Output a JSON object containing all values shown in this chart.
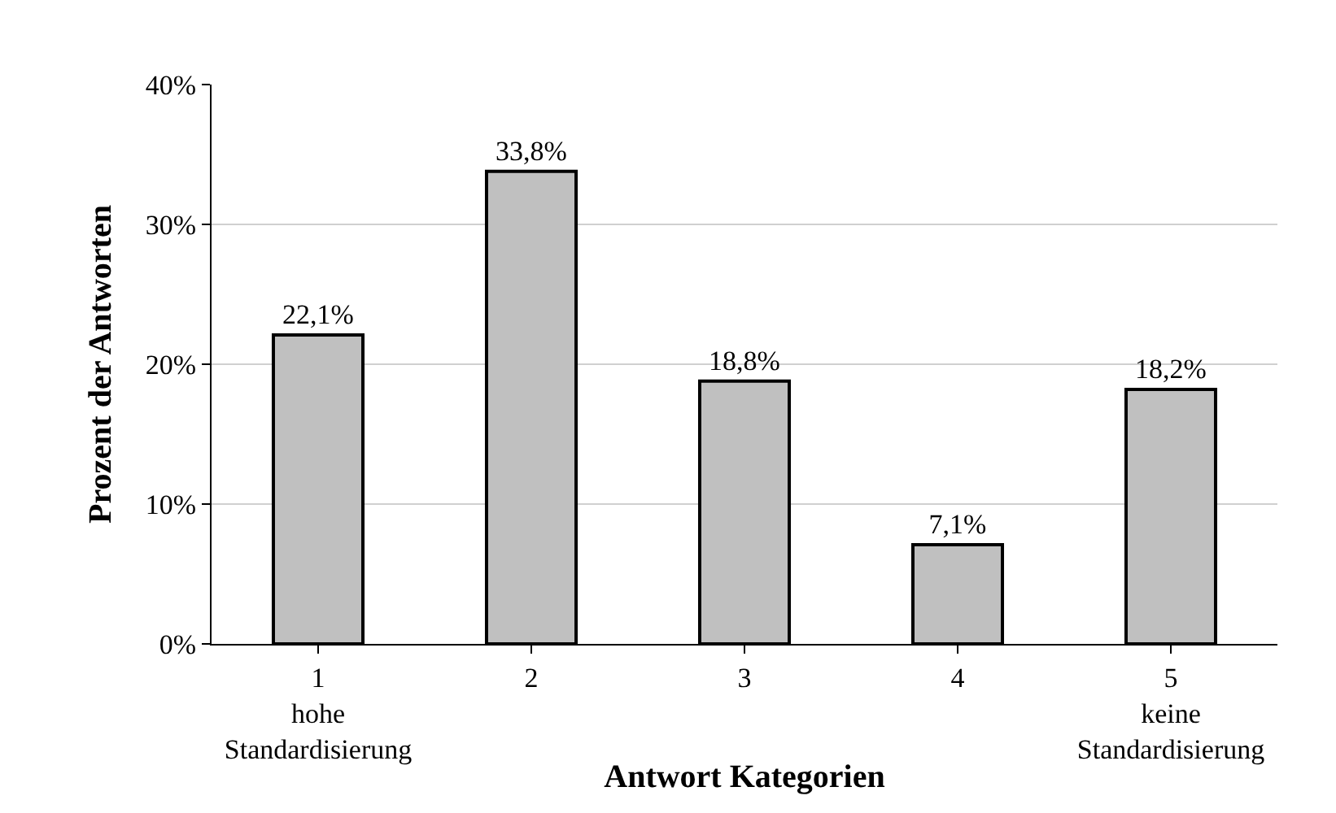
{
  "chart_data": {
    "type": "bar",
    "xlabel": "Antwort Kategorien",
    "ylabel": "Prozent der Antworten",
    "categories": [
      "1\nhohe\nStandardisierung",
      "2",
      "3",
      "4",
      "5\nkeine\nStandardisierung"
    ],
    "values": [
      22.1,
      33.8,
      18.8,
      7.1,
      18.2
    ],
    "value_labels": [
      "22,1%",
      "33,8%",
      "18,8%",
      "7,1%",
      "18,2%"
    ],
    "color": "#c0c0c0",
    "ylim": [
      0,
      40
    ],
    "yticks": [
      {
        "value": 0,
        "label": "0%"
      },
      {
        "value": 10,
        "label": "10%"
      },
      {
        "value": 20,
        "label": "20%"
      },
      {
        "value": 30,
        "label": "30%"
      },
      {
        "value": 40,
        "label": "40%"
      }
    ],
    "grid": "y"
  }
}
